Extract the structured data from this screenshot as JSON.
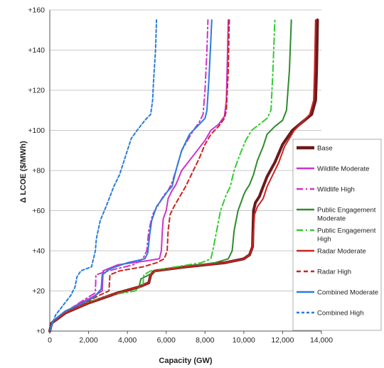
{
  "chart_data": {
    "type": "line",
    "title": "",
    "xlabel": "Capacity (GW)",
    "ylabel": "Δ LCOE ($/MWh)",
    "xlim": [
      0,
      14000
    ],
    "ylim": [
      0,
      160
    ],
    "x_ticks": [
      "0",
      "2,000",
      "4,000",
      "6,000",
      "8,000",
      "10,000",
      "12,000",
      "14,000"
    ],
    "y_ticks": [
      "+0",
      "+20",
      "+40",
      "+60",
      "+80",
      "+100",
      "+120",
      "+140",
      "+160"
    ],
    "grid": "horizontal",
    "legend_position": "right",
    "series": [
      {
        "name": "Base",
        "color": "#6b1a1a",
        "dash": "solid",
        "width": 4,
        "points": [
          [
            0,
            0
          ],
          [
            100,
            4
          ],
          [
            800,
            9
          ],
          [
            2000,
            14
          ],
          [
            3500,
            19
          ],
          [
            4600,
            22
          ],
          [
            5100,
            24
          ],
          [
            5200,
            28
          ],
          [
            5400,
            30
          ],
          [
            7000,
            32
          ],
          [
            9000,
            34
          ],
          [
            10000,
            36
          ],
          [
            10300,
            38
          ],
          [
            10450,
            42
          ],
          [
            10500,
            60
          ],
          [
            10600,
            64
          ],
          [
            10800,
            67
          ],
          [
            11000,
            72
          ],
          [
            11200,
            77
          ],
          [
            11600,
            84
          ],
          [
            12000,
            93
          ],
          [
            12500,
            100
          ],
          [
            13000,
            104
          ],
          [
            13500,
            108
          ],
          [
            13700,
            115
          ],
          [
            13750,
            130
          ],
          [
            13800,
            155
          ]
        ]
      },
      {
        "name": "Wildlife Moderate",
        "color": "#cc33cc",
        "dash": "solid",
        "width": 2,
        "points": [
          [
            0,
            0
          ],
          [
            200,
            5
          ],
          [
            1200,
            12
          ],
          [
            2200,
            17
          ],
          [
            2700,
            20
          ],
          [
            2750,
            30
          ],
          [
            3500,
            33
          ],
          [
            5000,
            35
          ],
          [
            5650,
            36
          ],
          [
            5750,
            40
          ],
          [
            5800,
            50
          ],
          [
            5850,
            56
          ],
          [
            6000,
            60
          ],
          [
            6100,
            66
          ],
          [
            6300,
            70
          ],
          [
            6500,
            73
          ],
          [
            6800,
            80
          ],
          [
            7200,
            85
          ],
          [
            7600,
            90
          ],
          [
            8000,
            95
          ],
          [
            8300,
            100
          ],
          [
            8700,
            103
          ],
          [
            9000,
            107
          ],
          [
            9100,
            115
          ],
          [
            9150,
            135
          ],
          [
            9200,
            155
          ]
        ]
      },
      {
        "name": "Wildlife High",
        "color": "#cc33cc",
        "dash": "dashdot",
        "width": 2,
        "points": [
          [
            0,
            0
          ],
          [
            200,
            5
          ],
          [
            1200,
            12
          ],
          [
            2000,
            17
          ],
          [
            2350,
            19
          ],
          [
            2380,
            28
          ],
          [
            3000,
            30
          ],
          [
            4300,
            33
          ],
          [
            4800,
            36
          ],
          [
            5000,
            40
          ],
          [
            5100,
            50
          ],
          [
            5300,
            58
          ],
          [
            5600,
            63
          ],
          [
            5900,
            68
          ],
          [
            6100,
            70
          ],
          [
            6200,
            72
          ],
          [
            6300,
            74
          ],
          [
            6500,
            80
          ],
          [
            6800,
            90
          ],
          [
            7100,
            95
          ],
          [
            7400,
            100
          ],
          [
            7700,
            104
          ],
          [
            7900,
            108
          ],
          [
            8000,
            120
          ],
          [
            8100,
            140
          ],
          [
            8150,
            155
          ]
        ]
      },
      {
        "name": "Public Engagement Moderate",
        "color": "#2e8b2e",
        "dash": "solid",
        "width": 2,
        "points": [
          [
            0,
            0
          ],
          [
            100,
            4
          ],
          [
            800,
            9
          ],
          [
            2000,
            14
          ],
          [
            3500,
            19
          ],
          [
            4600,
            22
          ],
          [
            4700,
            26
          ],
          [
            5500,
            30
          ],
          [
            7000,
            32
          ],
          [
            8500,
            34
          ],
          [
            9200,
            36
          ],
          [
            9400,
            40
          ],
          [
            9500,
            50
          ],
          [
            9700,
            60
          ],
          [
            10000,
            68
          ],
          [
            10100,
            70
          ],
          [
            10300,
            73
          ],
          [
            10500,
            78
          ],
          [
            10700,
            85
          ],
          [
            11000,
            92
          ],
          [
            11200,
            98
          ],
          [
            11600,
            102
          ],
          [
            12000,
            105
          ],
          [
            12200,
            110
          ],
          [
            12350,
            130
          ],
          [
            12450,
            155
          ]
        ]
      },
      {
        "name": "Public Engagement High",
        "color": "#33cc33",
        "dash": "dashdot",
        "width": 2,
        "points": [
          [
            0,
            0
          ],
          [
            100,
            4
          ],
          [
            700,
            9
          ],
          [
            1800,
            14
          ],
          [
            3200,
            18
          ],
          [
            4400,
            20
          ],
          [
            4800,
            23
          ],
          [
            4850,
            28
          ],
          [
            5200,
            30
          ],
          [
            6500,
            32
          ],
          [
            7800,
            34
          ],
          [
            8300,
            36
          ],
          [
            8400,
            40
          ],
          [
            8600,
            50
          ],
          [
            8800,
            60
          ],
          [
            9100,
            68
          ],
          [
            9300,
            72
          ],
          [
            9500,
            80
          ],
          [
            9800,
            88
          ],
          [
            10100,
            95
          ],
          [
            10400,
            100
          ],
          [
            10800,
            103
          ],
          [
            11200,
            106
          ],
          [
            11400,
            110
          ],
          [
            11500,
            130
          ],
          [
            11600,
            155
          ]
        ]
      },
      {
        "name": "Radar Moderate",
        "color": "#cc2222",
        "dash": "solid",
        "width": 2,
        "points": [
          [
            0,
            0
          ],
          [
            100,
            4
          ],
          [
            800,
            9
          ],
          [
            2000,
            14
          ],
          [
            3500,
            19
          ],
          [
            4600,
            22
          ],
          [
            5100,
            24
          ],
          [
            5200,
            28
          ],
          [
            5400,
            30
          ],
          [
            7000,
            32
          ],
          [
            9000,
            34
          ],
          [
            10000,
            36
          ],
          [
            10300,
            38
          ],
          [
            10450,
            42
          ],
          [
            10550,
            58
          ],
          [
            10700,
            62
          ],
          [
            11000,
            66
          ],
          [
            11200,
            72
          ],
          [
            11500,
            78
          ],
          [
            11800,
            84
          ],
          [
            12100,
            92
          ],
          [
            12600,
            100
          ],
          [
            13000,
            104
          ],
          [
            13400,
            108
          ],
          [
            13600,
            115
          ],
          [
            13650,
            130
          ],
          [
            13700,
            155
          ]
        ]
      },
      {
        "name": "Radar High",
        "color": "#cc2222",
        "dash": "dash",
        "width": 2,
        "points": [
          [
            0,
            0
          ],
          [
            100,
            4
          ],
          [
            700,
            9
          ],
          [
            1800,
            14
          ],
          [
            2600,
            18
          ],
          [
            3050,
            20
          ],
          [
            3100,
            28
          ],
          [
            3600,
            30
          ],
          [
            4800,
            32
          ],
          [
            5500,
            34
          ],
          [
            5900,
            36
          ],
          [
            6050,
            40
          ],
          [
            6100,
            50
          ],
          [
            6200,
            58
          ],
          [
            6400,
            62
          ],
          [
            6700,
            67
          ],
          [
            7000,
            72
          ],
          [
            7400,
            80
          ],
          [
            7700,
            86
          ],
          [
            8000,
            93
          ],
          [
            8300,
            98
          ],
          [
            8700,
            102
          ],
          [
            9000,
            106
          ],
          [
            9100,
            110
          ],
          [
            9200,
            130
          ],
          [
            9250,
            155
          ]
        ]
      },
      {
        "name": "Combined Moderate",
        "color": "#2b7bdc",
        "dash": "solid",
        "width": 2,
        "points": [
          [
            0,
            0
          ],
          [
            150,
            5
          ],
          [
            800,
            10
          ],
          [
            1500,
            13
          ],
          [
            2300,
            17
          ],
          [
            2650,
            21
          ],
          [
            2700,
            28
          ],
          [
            3100,
            31
          ],
          [
            4000,
            34
          ],
          [
            4900,
            36
          ],
          [
            5050,
            39
          ],
          [
            5150,
            48
          ],
          [
            5250,
            55
          ],
          [
            5500,
            62
          ],
          [
            5800,
            66
          ],
          [
            6100,
            70
          ],
          [
            6300,
            72
          ],
          [
            6500,
            80
          ],
          [
            6800,
            90
          ],
          [
            7200,
            98
          ],
          [
            7600,
            102
          ],
          [
            8000,
            106
          ],
          [
            8100,
            110
          ],
          [
            8200,
            125
          ],
          [
            8300,
            145
          ],
          [
            8350,
            155
          ]
        ]
      },
      {
        "name": "Combined High",
        "color": "#2b7bdc",
        "dash": "shortdash",
        "width": 2,
        "points": [
          [
            0,
            0
          ],
          [
            300,
            8
          ],
          [
            700,
            13
          ],
          [
            1100,
            18
          ],
          [
            1300,
            22
          ],
          [
            1400,
            27
          ],
          [
            1600,
            30
          ],
          [
            2150,
            32
          ],
          [
            2250,
            36
          ],
          [
            2350,
            40
          ],
          [
            2400,
            46
          ],
          [
            2600,
            55
          ],
          [
            2900,
            62
          ],
          [
            3100,
            67
          ],
          [
            3300,
            72
          ],
          [
            3600,
            78
          ],
          [
            3800,
            84
          ],
          [
            4000,
            90
          ],
          [
            4200,
            96
          ],
          [
            4500,
            100
          ],
          [
            4900,
            105
          ],
          [
            5200,
            108
          ],
          [
            5300,
            115
          ],
          [
            5350,
            125
          ],
          [
            5450,
            140
          ],
          [
            5500,
            155
          ]
        ]
      }
    ]
  }
}
